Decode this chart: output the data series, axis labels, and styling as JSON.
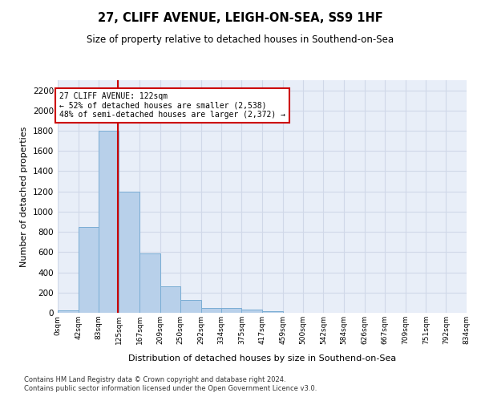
{
  "title": "27, CLIFF AVENUE, LEIGH-ON-SEA, SS9 1HF",
  "subtitle": "Size of property relative to detached houses in Southend-on-Sea",
  "xlabel": "Distribution of detached houses by size in Southend-on-Sea",
  "ylabel": "Number of detached properties",
  "bar_heights": [
    25,
    850,
    1800,
    1200,
    590,
    260,
    130,
    50,
    45,
    30,
    15,
    0,
    0,
    0,
    0,
    0,
    0,
    0,
    0,
    0
  ],
  "bin_edges": [
    0,
    42,
    83,
    125,
    167,
    209,
    250,
    292,
    334,
    375,
    417,
    459,
    500,
    542,
    584,
    626,
    667,
    709,
    751,
    792,
    834
  ],
  "tick_labels": [
    "0sqm",
    "42sqm",
    "83sqm",
    "125sqm",
    "167sqm",
    "209sqm",
    "250sqm",
    "292sqm",
    "334sqm",
    "375sqm",
    "417sqm",
    "459sqm",
    "500sqm",
    "542sqm",
    "584sqm",
    "626sqm",
    "667sqm",
    "709sqm",
    "751sqm",
    "792sqm",
    "834sqm"
  ],
  "bar_color": "#b8d0ea",
  "bar_edge_color": "#7aadd4",
  "grid_color": "#d0d8e8",
  "vline_x": 122,
  "vline_color": "#cc0000",
  "annotation_text": "27 CLIFF AVENUE: 122sqm\n← 52% of detached houses are smaller (2,538)\n48% of semi-detached houses are larger (2,372) →",
  "annotation_box_color": "#ffffff",
  "annotation_border_color": "#cc0000",
  "ylim": [
    0,
    2300
  ],
  "yticks": [
    0,
    200,
    400,
    600,
    800,
    1000,
    1200,
    1400,
    1600,
    1800,
    2000,
    2200
  ],
  "footnote1": "Contains HM Land Registry data © Crown copyright and database right 2024.",
  "footnote2": "Contains public sector information licensed under the Open Government Licence v3.0.",
  "bg_color": "#e8eef8"
}
